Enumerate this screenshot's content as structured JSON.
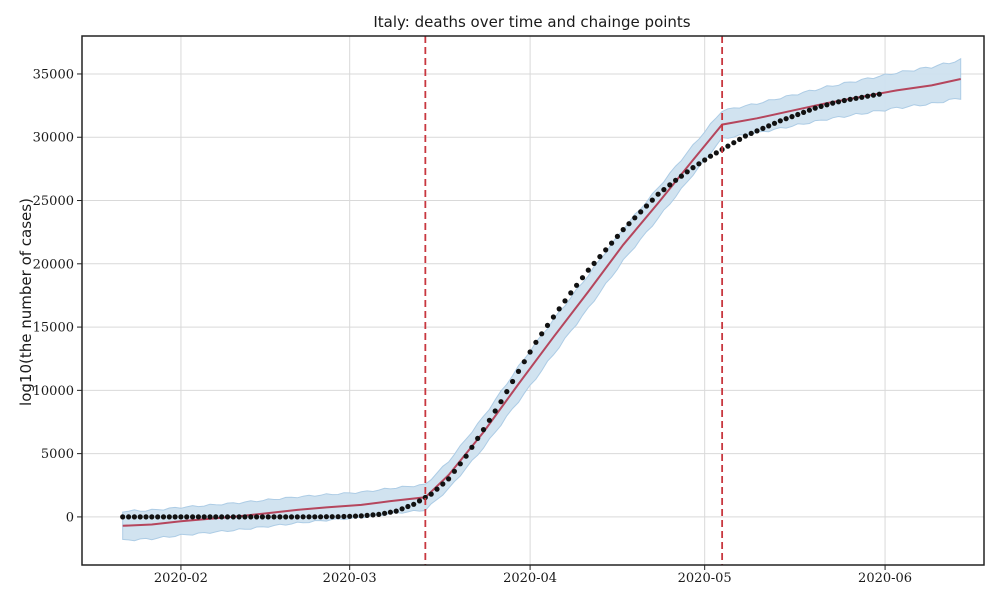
{
  "chart_data": {
    "type": "line",
    "title": "Italy: deaths over time and chainge points",
    "xlabel": "",
    "ylabel": "log10(the number of cases)",
    "x_range": [
      "2020-01-15",
      "2020-06-18"
    ],
    "ylim": [
      -3800,
      38000
    ],
    "x_ticks": [
      {
        "date": "2020-02-01",
        "label": "2020-02"
      },
      {
        "date": "2020-03-01",
        "label": "2020-03"
      },
      {
        "date": "2020-04-01",
        "label": "2020-04"
      },
      {
        "date": "2020-05-01",
        "label": "2020-05"
      },
      {
        "date": "2020-06-01",
        "label": "2020-06"
      }
    ],
    "y_ticks": [
      {
        "value": 0,
        "label": "0"
      },
      {
        "value": 5000,
        "label": "5000"
      },
      {
        "value": 10000,
        "label": "10000"
      },
      {
        "value": 15000,
        "label": "15000"
      },
      {
        "value": 20000,
        "label": "20000"
      },
      {
        "value": 25000,
        "label": "25000"
      },
      {
        "value": 30000,
        "label": "30000"
      },
      {
        "value": 35000,
        "label": "35000"
      }
    ],
    "grid": true,
    "legend": "none",
    "colors": {
      "observed": "#111111",
      "fit": "#b5465d",
      "band": "#cfe2f0",
      "band_edge": "#a9cae4",
      "change_point": "#c8373f",
      "grid": "#d9d9d9"
    },
    "change_points": [
      "2020-03-14",
      "2020-05-04"
    ],
    "observed": {
      "start": "2020-01-22",
      "end": "2020-05-31",
      "anchors": [
        [
          "2020-01-22",
          0
        ],
        [
          "2020-02-20",
          0
        ],
        [
          "2020-02-28",
          20
        ],
        [
          "2020-03-03",
          80
        ],
        [
          "2020-03-06",
          200
        ],
        [
          "2020-03-09",
          460
        ],
        [
          "2020-03-12",
          1000
        ],
        [
          "2020-03-15",
          1800
        ],
        [
          "2020-03-18",
          3000
        ],
        [
          "2020-03-21",
          4800
        ],
        [
          "2020-03-24",
          6900
        ],
        [
          "2020-03-27",
          9100
        ],
        [
          "2020-03-30",
          11500
        ],
        [
          "2020-04-02",
          13800
        ],
        [
          "2020-04-05",
          15800
        ],
        [
          "2020-04-08",
          17700
        ],
        [
          "2020-04-11",
          19500
        ],
        [
          "2020-04-14",
          21100
        ],
        [
          "2020-04-17",
          22700
        ],
        [
          "2020-04-20",
          24100
        ],
        [
          "2020-04-23",
          25500
        ],
        [
          "2020-04-26",
          26600
        ],
        [
          "2020-04-29",
          27600
        ],
        [
          "2020-05-02",
          28500
        ],
        [
          "2020-05-05",
          29300
        ],
        [
          "2020-05-08",
          30100
        ],
        [
          "2020-05-11",
          30700
        ],
        [
          "2020-05-14",
          31300
        ],
        [
          "2020-05-17",
          31800
        ],
        [
          "2020-05-20",
          32300
        ],
        [
          "2020-05-23",
          32700
        ],
        [
          "2020-05-26",
          33000
        ],
        [
          "2020-05-31",
          33400
        ]
      ]
    },
    "fit": [
      [
        "2020-01-22",
        -700
      ],
      [
        "2020-01-27",
        -600
      ],
      [
        "2020-02-01",
        -350
      ],
      [
        "2020-02-06",
        -150
      ],
      [
        "2020-02-11",
        50
      ],
      [
        "2020-02-16",
        300
      ],
      [
        "2020-02-21",
        550
      ],
      [
        "2020-02-26",
        750
      ],
      [
        "2020-03-03",
        950
      ],
      [
        "2020-03-08",
        1250
      ],
      [
        "2020-03-14",
        1550
      ],
      [
        "2020-03-18",
        3300
      ],
      [
        "2020-03-24",
        6700
      ],
      [
        "2020-03-30",
        10500
      ],
      [
        "2020-04-05",
        14200
      ],
      [
        "2020-04-11",
        17800
      ],
      [
        "2020-04-17",
        21500
      ],
      [
        "2020-04-23",
        24800
      ],
      [
        "2020-04-29",
        28200
      ],
      [
        "2020-05-04",
        31000
      ],
      [
        "2020-05-10",
        31500
      ],
      [
        "2020-05-16",
        32100
      ],
      [
        "2020-05-22",
        32700
      ],
      [
        "2020-05-28",
        33200
      ],
      [
        "2020-06-03",
        33700
      ],
      [
        "2020-06-09",
        34100
      ],
      [
        "2020-06-14",
        34600
      ]
    ],
    "band_width": [
      [
        "2020-01-22",
        1150
      ],
      [
        "2020-02-01",
        1100
      ],
      [
        "2020-03-01",
        1000
      ],
      [
        "2020-03-14",
        1000
      ],
      [
        "2020-04-01",
        1400
      ],
      [
        "2020-05-04",
        1100
      ],
      [
        "2020-06-14",
        1500
      ]
    ]
  }
}
